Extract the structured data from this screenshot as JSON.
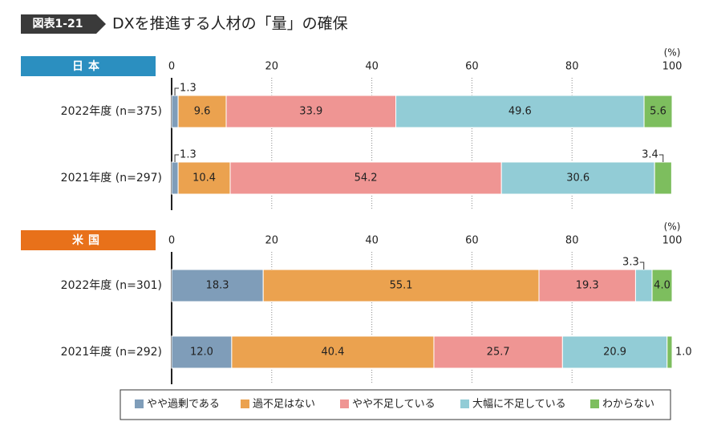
{
  "header": {
    "label": "図表1-21",
    "title": "DXを推進する人材の「量」の確保"
  },
  "chart_data": {
    "type": "stacked-hbar",
    "xlim": [
      0,
      100
    ],
    "xticks": [
      0,
      20,
      40,
      60,
      80,
      100
    ],
    "unit": "(%)",
    "grid": true,
    "series": [
      {
        "name": "やや過剰である",
        "color": "#7f9db9"
      },
      {
        "name": "過不足はない",
        "color": "#eba24f"
      },
      {
        "name": "やや不足している",
        "color": "#ef9593"
      },
      {
        "name": "大幅に不足している",
        "color": "#92ccd6"
      },
      {
        "name": "わからない",
        "color": "#7dbe5e"
      }
    ],
    "panels": [
      {
        "title": "日本",
        "title_color": "#2b8fc0",
        "categories": [
          "2022年度 (n=375)",
          "2021年度 (n=297)"
        ],
        "values": [
          [
            1.3,
            1.3
          ],
          [
            9.6,
            10.4
          ],
          [
            33.9,
            54.2
          ],
          [
            49.6,
            30.6
          ],
          [
            5.6,
            3.4
          ]
        ]
      },
      {
        "title": "米国",
        "title_color": "#e8711a",
        "categories": [
          "2022年度 (n=301)",
          "2021年度 (n=292)"
        ],
        "values": [
          [
            18.3,
            12
          ],
          [
            55.1,
            40.4
          ],
          [
            19.3,
            25.7
          ],
          [
            3.3,
            20.9
          ],
          [
            4,
            1
          ]
        ],
        "value_labels": [
          [
            "18.3",
            "12.0"
          ],
          [
            "55.1",
            "40.4"
          ],
          [
            "19.3",
            "25.7"
          ],
          [
            "3.3",
            "20.9"
          ],
          [
            "4.0",
            "1.0"
          ]
        ]
      }
    ]
  }
}
